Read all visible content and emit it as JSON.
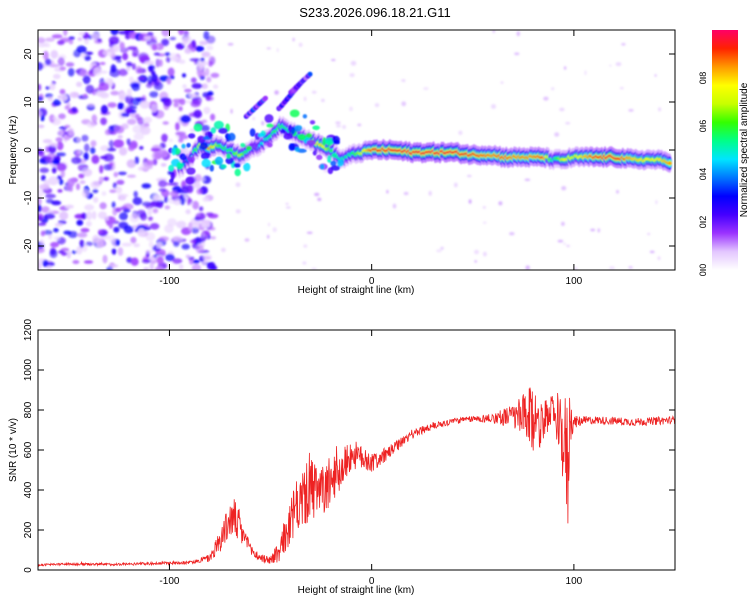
{
  "figure_title": "S233.2026.096.18.21.G11",
  "chart_data": [
    {
      "type": "heatmap",
      "title": "S233.2026.096.18.21.G11",
      "xlabel": "Height of straight line (km)",
      "ylabel": "Frequency (Hz)",
      "xlim": [
        -165,
        150
      ],
      "ylim": [
        -25,
        25
      ],
      "x_ticks": [
        -100,
        0,
        100
      ],
      "y_ticks": [
        20,
        10,
        0,
        -10,
        -20
      ],
      "colorbar": {
        "label": "Normalized spectral amplitude",
        "range": [
          0,
          1
        ],
        "ticks": [
          0.0,
          0.2,
          0.4,
          0.6,
          0.8
        ],
        "colormap": [
          "#ffffff",
          "#e3c6ff",
          "#9a33ff",
          "#4400ff",
          "#0000ff",
          "#0077ff",
          "#00e5ff",
          "#00ff88",
          "#33ff00",
          "#c8ff00",
          "#ffff00",
          "#ff9900",
          "#ff2200",
          "#ff0066"
        ]
      },
      "ridge": {
        "x": [
          -95,
          -90,
          -85,
          -80,
          -75,
          -70,
          -65,
          -60,
          -55,
          -50,
          -45,
          -40,
          -35,
          -30,
          -25,
          -20,
          -15,
          -10,
          -5,
          0,
          10,
          20,
          30,
          40,
          50,
          60,
          65,
          70,
          80,
          85,
          90,
          95,
          100,
          110,
          120,
          130,
          140,
          148
        ],
        "freq": [
          -4,
          -2,
          1,
          0.5,
          1,
          0,
          -1,
          0,
          1,
          3,
          5,
          4,
          3,
          2,
          1,
          0,
          -2,
          -1,
          -0.5,
          0,
          0,
          -0.5,
          -0.5,
          -0.5,
          -1,
          -1,
          -1.5,
          -1.5,
          -1.5,
          -1.5,
          -2,
          -2,
          -1.5,
          -1.5,
          -1.5,
          -2,
          -2,
          -2.5
        ],
        "amplitude": [
          0.3,
          0.4,
          0.7,
          0.85,
          0.6,
          0.55,
          0.7,
          0.5,
          0.45,
          0.55,
          0.6,
          0.5,
          0.5,
          0.6,
          0.8,
          0.6,
          0.5,
          0.55,
          0.7,
          0.9,
          0.95,
          0.95,
          0.95,
          0.95,
          0.9,
          0.85,
          0.9,
          0.85,
          0.85,
          0.9,
          0.5,
          0.75,
          0.7,
          0.9,
          0.95,
          0.8,
          0.75,
          0.85
        ]
      },
      "harmonics": [
        {
          "x": [
            -62,
            -52
          ],
          "freq": [
            7,
            11
          ]
        },
        {
          "x": [
            -45,
            -35
          ],
          "freq": [
            9,
            14
          ]
        },
        {
          "x": [
            -40,
            -30
          ],
          "freq": [
            12,
            16
          ]
        }
      ],
      "noise_region": {
        "x": [
          -165,
          -85
        ],
        "freq": [
          -25,
          25
        ],
        "amplitude": [
          0.05,
          0.3
        ]
      }
    },
    {
      "type": "line",
      "xlabel": "Height of straight line (km)",
      "ylabel": "SNR (10 * v/v)",
      "xlim": [
        -165,
        150
      ],
      "ylim": [
        0,
        1200
      ],
      "x_ticks": [
        -100,
        0,
        100
      ],
      "y_ticks": [
        0,
        200,
        400,
        600,
        800,
        1000,
        1200
      ],
      "series": [
        {
          "name": "SNR",
          "color": "#ee2222",
          "x": [
            -165,
            -150,
            -130,
            -110,
            -90,
            -80,
            -75,
            -70,
            -68,
            -65,
            -62,
            -60,
            -55,
            -50,
            -45,
            -40,
            -35,
            -30,
            -25,
            -20,
            -15,
            -10,
            -5,
            0,
            5,
            10,
            15,
            20,
            25,
            30,
            40,
            50,
            60,
            70,
            75,
            80,
            85,
            90,
            93,
            95,
            97,
            98,
            100,
            105,
            110,
            120,
            130,
            140,
            150
          ],
          "values": [
            25,
            30,
            28,
            32,
            38,
            60,
            150,
            250,
            260,
            200,
            150,
            100,
            60,
            50,
            100,
            250,
            350,
            400,
            380,
            450,
            500,
            580,
            560,
            540,
            560,
            600,
            640,
            680,
            700,
            720,
            745,
            755,
            760,
            770,
            760,
            750,
            740,
            800,
            700,
            650,
            500,
            760,
            740,
            745,
            750,
            745,
            740,
            745,
            750
          ],
          "fluctuation": [
            5,
            6,
            6,
            7,
            8,
            20,
            60,
            90,
            100,
            80,
            50,
            30,
            20,
            20,
            80,
            120,
            150,
            160,
            140,
            120,
            100,
            80,
            60,
            50,
            40,
            30,
            25,
            25,
            20,
            20,
            15,
            15,
            25,
            60,
            120,
            180,
            100,
            80,
            150,
            250,
            350,
            150,
            30,
            25,
            20,
            20,
            20,
            20,
            20
          ]
        }
      ]
    }
  ]
}
